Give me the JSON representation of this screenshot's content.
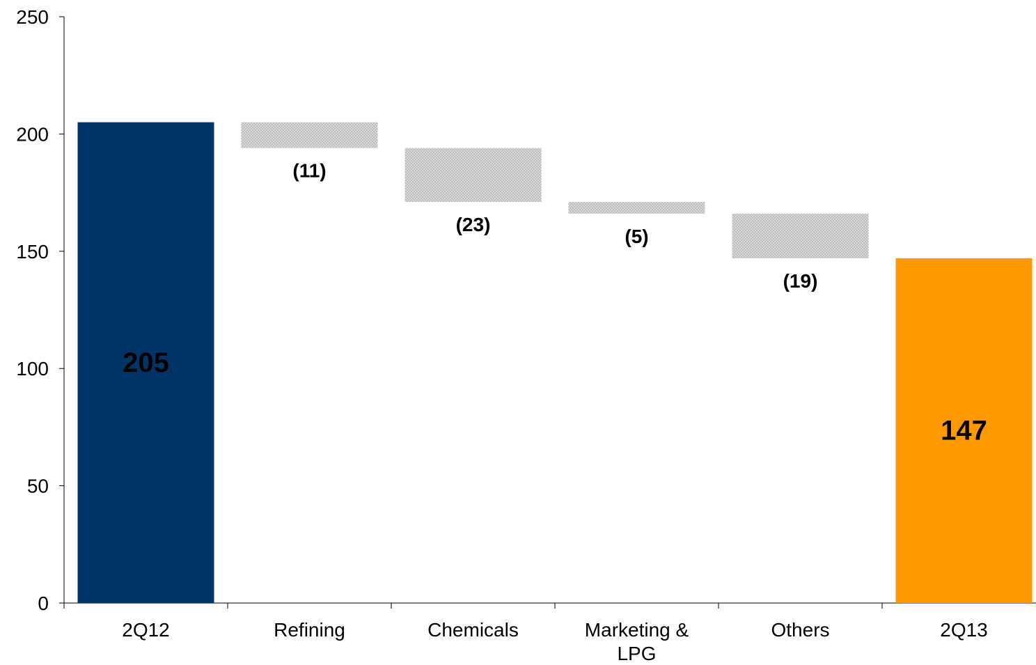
{
  "chart_data": {
    "type": "bar",
    "subtype": "waterfall",
    "categories": [
      "2Q12",
      "Refining",
      "Chemicals",
      "Marketing &\nLPG",
      "Others",
      "2Q13"
    ],
    "steps": [
      {
        "category": "2Q12",
        "kind": "total",
        "value": 205,
        "label": "205"
      },
      {
        "category": "Refining",
        "kind": "delta",
        "value": -11,
        "label": "(11)"
      },
      {
        "category": "Chemicals",
        "kind": "delta",
        "value": -23,
        "label": "(23)"
      },
      {
        "category": "Marketing &\nLPG",
        "kind": "delta",
        "value": -5,
        "label": "(5)"
      },
      {
        "category": "Others",
        "kind": "delta",
        "value": -19,
        "label": "(19)"
      },
      {
        "category": "2Q13",
        "kind": "total",
        "value": 147,
        "label": "147"
      }
    ],
    "ylim": [
      0,
      250
    ],
    "yticks": [
      0,
      50,
      100,
      150,
      200,
      250
    ],
    "xlabel": "",
    "ylabel": "",
    "title": "",
    "grid": false,
    "legend": "none",
    "colors": {
      "start_total": "#003366",
      "end_total": "#FF9900",
      "delta": "#C8C8C8",
      "start_label": "#FFFFFF",
      "end_label": "#000000",
      "delta_label": "#000000"
    }
  }
}
